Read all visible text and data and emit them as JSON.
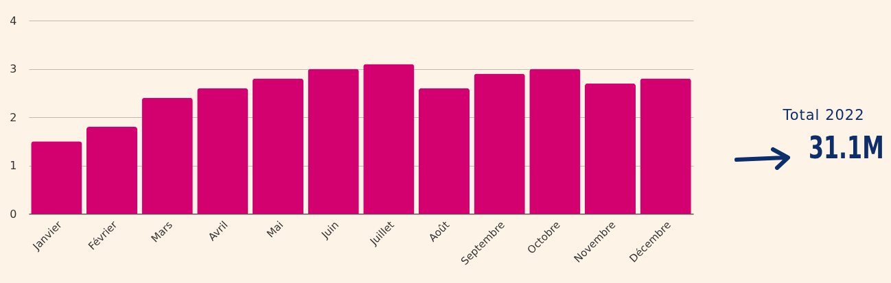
{
  "chart_data": {
    "type": "bar",
    "categories": [
      "Janvier",
      "Février",
      "Mars",
      "Avril",
      "Mai",
      "Juin",
      "Juillet",
      "Août",
      "Septembre",
      "Octobre",
      "Novembre",
      "Décembre"
    ],
    "values": [
      1.5,
      1.8,
      2.4,
      2.6,
      2.8,
      3.0,
      3.1,
      2.6,
      2.9,
      3.0,
      2.7,
      2.8
    ],
    "color": "#d3006f",
    "ylim": [
      0,
      4
    ],
    "yticks": [
      0,
      1,
      2,
      3,
      4
    ],
    "grid": "y",
    "annotations": [
      "Total 2022",
      "31.1M"
    ]
  }
}
